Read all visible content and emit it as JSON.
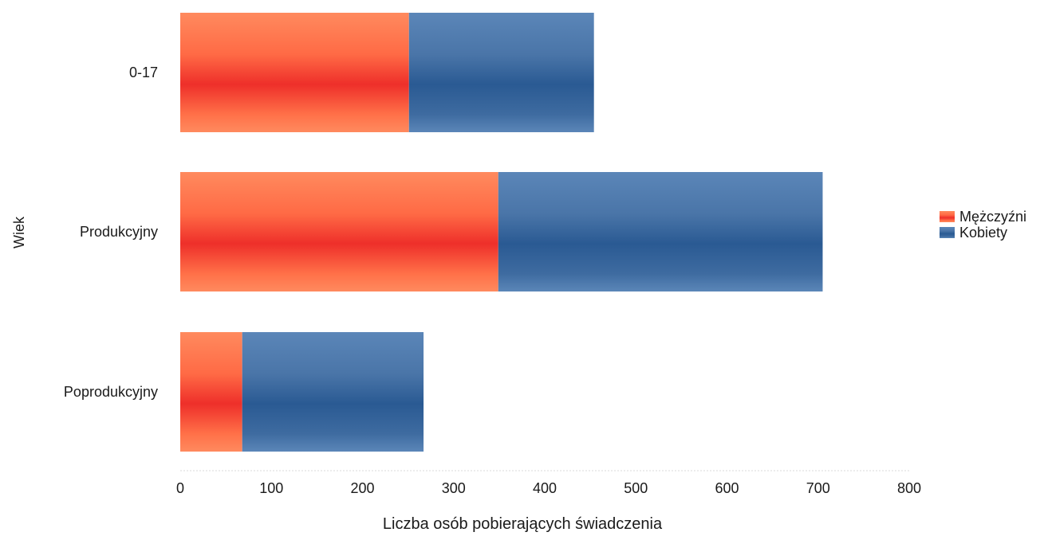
{
  "chart_data": {
    "type": "bar",
    "orientation": "horizontal",
    "stacked": true,
    "categories": [
      "0-17",
      "Produkcyjny",
      "Poprodukcyjny"
    ],
    "series": [
      {
        "name": "Mężczyźni",
        "values": [
          251,
          349,
          68
        ],
        "color": "#f04a32"
      },
      {
        "name": "Kobiety",
        "values": [
          203,
          356,
          199
        ],
        "color": "#35639a"
      }
    ],
    "xlabel": "Liczba osób pobierających świadczenia",
    "ylabel": "Wiek",
    "xlim": [
      0,
      800
    ],
    "xticks": [
      "0",
      "100",
      "200",
      "300",
      "400",
      "500",
      "600",
      "700",
      "800"
    ],
    "grid": false,
    "legend_position": "right"
  }
}
